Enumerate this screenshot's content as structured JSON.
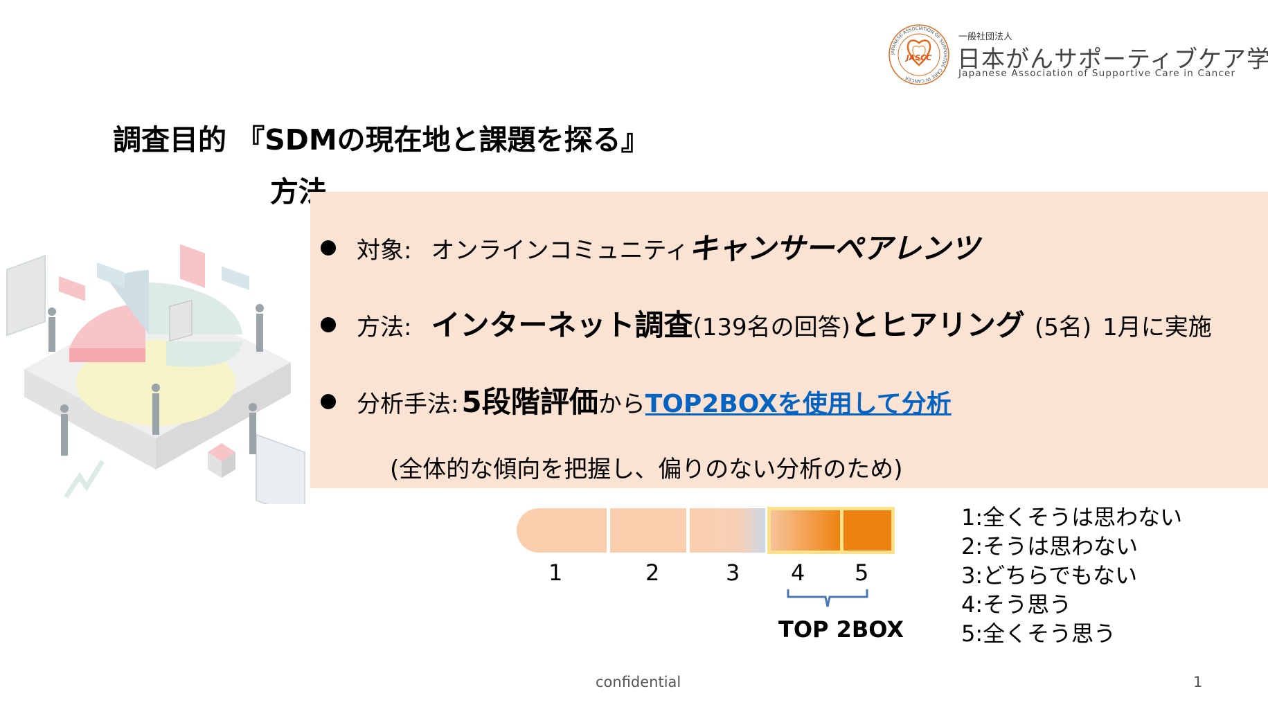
{
  "logo": {
    "emblem_text": "JASCC",
    "ring_text": "JAPANESE ASSOCIATION OF SUPPORTIVE CARE IN CANCER",
    "small": "一般社団法人",
    "name_jp": "日本がんサポーティブケア学会",
    "name_en": "Japanese Association of Supportive Care in Cancer"
  },
  "title": "調査目的 『SDMの現在地と課題を探る』",
  "method_heading": "方法",
  "bullets": {
    "target": {
      "label": "対象:",
      "text": "オンラインコミュニティ",
      "emphasis": "キャンサーペアレンツ"
    },
    "method": {
      "label": "方法:",
      "emphasis1": "インターネット調査",
      "detail1": "(139名の回答)",
      "emphasis2": "とヒアリング",
      "detail2": "(5名)",
      "detail3": "1月に実施"
    },
    "analysis": {
      "label": "分析手法:",
      "emphasis": "5段階評価",
      "connector": "から",
      "link": "TOP2BOXを使用して分析"
    }
  },
  "note": "(全体的な傾向を把握し、偏りのない分析のため)",
  "scale": {
    "ticks": [
      "1",
      "2",
      "3",
      "4",
      "5"
    ],
    "top_box_label": "TOP 2BOX",
    "colors": {
      "light": "#fbcfad",
      "accent": "#ee8210",
      "highlight_border": "#fde08a"
    }
  },
  "legend": [
    "1:全くそうは思わない",
    "2:そうは思わない",
    "3:どちらでもない",
    "4:そう思う",
    "5:全くそう思う"
  ],
  "footer": "confidential",
  "page_number": "1"
}
